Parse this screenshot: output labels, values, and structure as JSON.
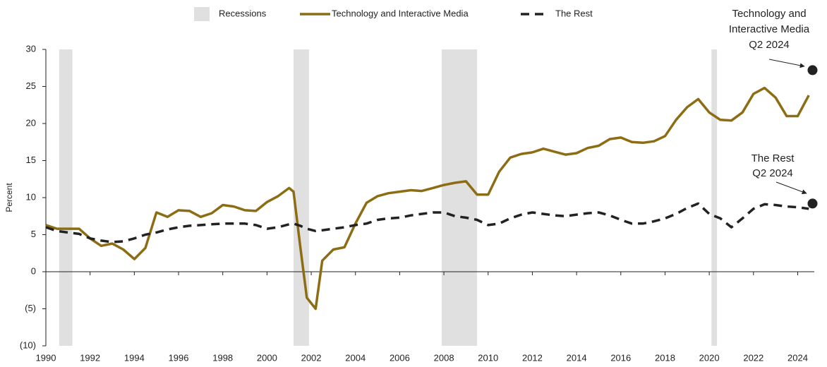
{
  "chart_data": {
    "type": "line",
    "y_label": "Percent",
    "recessions_label": "Recessions",
    "recessions_color": "#e0e0e0",
    "recessions": [
      [
        1990.6,
        1991.2
      ],
      [
        2001.2,
        2001.9
      ],
      [
        2007.9,
        2009.5
      ],
      [
        2020.1,
        2020.35
      ]
    ],
    "x": [
      1990,
      1990.5,
      1991,
      1991.5,
      1992,
      1992.5,
      1993,
      1993.5,
      1994,
      1994.5,
      1995,
      1995.5,
      1996,
      1996.5,
      1997,
      1997.5,
      1998,
      1998.5,
      1999,
      1999.5,
      2000,
      2000.5,
      2001,
      2001.2,
      2001.5,
      2001.8,
      2002.2,
      2002.5,
      2003,
      2003.5,
      2004,
      2004.5,
      2005,
      2005.5,
      2006,
      2006.5,
      2007,
      2007.5,
      2008,
      2008.5,
      2009,
      2009.5,
      2010,
      2010.5,
      2011,
      2011.5,
      2012,
      2012.5,
      2013,
      2013.5,
      2014,
      2014.5,
      2015,
      2015.5,
      2016,
      2016.5,
      2017,
      2017.5,
      2018,
      2018.5,
      2019,
      2019.5,
      2020,
      2020.5,
      2021,
      2021.5,
      2022,
      2022.5,
      2023,
      2023.5,
      2024,
      2024.5
    ],
    "series": [
      {
        "name": "Technology and Interactive Media",
        "color": "#8c6d14",
        "dash": false,
        "values": [
          6.3,
          5.8,
          5.8,
          5.8,
          4.5,
          3.5,
          3.8,
          3.0,
          1.7,
          3.2,
          8.0,
          7.4,
          8.3,
          8.2,
          7.4,
          7.9,
          9.0,
          8.8,
          8.3,
          8.2,
          9.4,
          10.2,
          11.3,
          10.8,
          3.5,
          -3.5,
          -5.0,
          1.5,
          3.0,
          3.3,
          6.5,
          9.3,
          10.2,
          10.6,
          10.8,
          11.0,
          10.9,
          11.3,
          11.7,
          12.0,
          12.2,
          10.4,
          10.4,
          13.5,
          15.4,
          15.9,
          16.1,
          16.6,
          16.2,
          15.8,
          16.0,
          16.7,
          17.0,
          17.9,
          18.1,
          17.5,
          17.4,
          17.6,
          18.3,
          20.5,
          22.2,
          23.3,
          21.5,
          20.5,
          20.4,
          21.5,
          24.0,
          24.8,
          23.5,
          21.0,
          21.0,
          23.8
        ]
      },
      {
        "name": "The Rest",
        "color": "#222222",
        "dash": true,
        "values": [
          6.0,
          5.5,
          5.3,
          5.1,
          4.5,
          4.2,
          4.0,
          4.1,
          4.5,
          5.0,
          5.3,
          5.7,
          6.0,
          6.2,
          6.3,
          6.4,
          6.5,
          6.5,
          6.5,
          6.3,
          5.8,
          6.0,
          6.4,
          6.5,
          6.2,
          5.8,
          5.5,
          5.6,
          5.8,
          6.0,
          6.3,
          6.5,
          7.0,
          7.2,
          7.3,
          7.6,
          7.8,
          8.0,
          8.0,
          7.5,
          7.3,
          7.0,
          6.3,
          6.5,
          7.2,
          7.7,
          8.0,
          7.8,
          7.6,
          7.5,
          7.7,
          7.9,
          8.0,
          7.6,
          7.0,
          6.5,
          6.5,
          6.8,
          7.2,
          7.8,
          8.6,
          9.2,
          7.8,
          7.2,
          6.0,
          7.2,
          8.5,
          9.1,
          9.0,
          8.8,
          8.7,
          8.5
        ]
      }
    ],
    "annotations": [
      {
        "lines": [
          "Technology and",
          "Interactive Media",
          "Q2 2024"
        ],
        "x": 2024.67,
        "y": 27.2
      },
      {
        "lines": [
          "The Rest",
          "Q2 2024"
        ],
        "x": 2024.67,
        "y": 9.2
      }
    ],
    "xlim": [
      1990,
      2024.75
    ],
    "xticks": [
      1990,
      1992,
      1994,
      1996,
      1998,
      2000,
      2002,
      2004,
      2006,
      2008,
      2010,
      2012,
      2014,
      2016,
      2018,
      2020,
      2022,
      2024
    ],
    "ylim": [
      -10,
      30
    ],
    "yticks": [
      {
        "value": -10,
        "label": "(10)"
      },
      {
        "value": -5,
        "label": "(5)"
      },
      0,
      5,
      10,
      15,
      20,
      25,
      30
    ]
  }
}
